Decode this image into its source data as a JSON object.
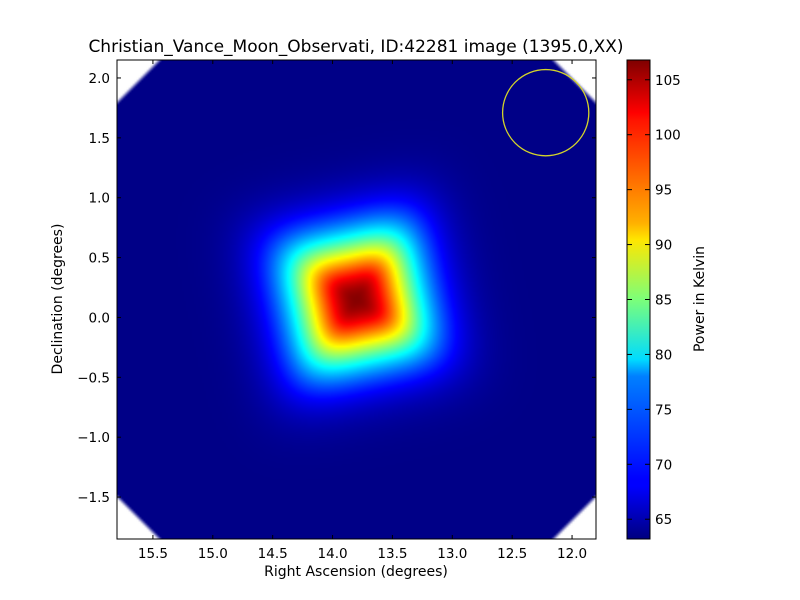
{
  "chart_data": {
    "type": "heatmap",
    "title": "Christian_Vance_Moon_Observati, ID:42281 image (1395.0,XX)",
    "xlabel": "Right Ascension (degrees)",
    "ylabel": "Declination (degrees)",
    "colorbar_label": "Power in Kelvin",
    "colormap": "jet",
    "xlim": [
      15.8,
      11.8
    ],
    "ylim": [
      -1.85,
      2.15
    ],
    "x_ticks": [
      15.5,
      15.0,
      14.5,
      14.0,
      13.5,
      13.0,
      12.5,
      12.0
    ],
    "x_tick_labels": [
      "15.5",
      "15.0",
      "14.5",
      "14.0",
      "13.5",
      "13.0",
      "12.5",
      "12.0"
    ],
    "y_ticks": [
      2.0,
      1.5,
      1.0,
      0.5,
      0.0,
      -0.5,
      -1.0,
      -1.5
    ],
    "y_tick_labels": [
      "2.0",
      "1.5",
      "1.0",
      "0.5",
      "0.0",
      "−0.5",
      "−1.0",
      "−1.5"
    ],
    "clim": [
      63.2,
      106.8
    ],
    "colorbar_ticks": [
      65,
      70,
      75,
      80,
      85,
      90,
      95,
      100,
      105
    ],
    "colorbar_tick_labels": [
      "65",
      "70",
      "75",
      "80",
      "85",
      "90",
      "95",
      "100",
      "105"
    ],
    "background_value": 63.5,
    "source": {
      "ra_center": 13.8,
      "dec_center": 0.15,
      "peak_value": 106.5,
      "plateau_half_width_deg": 0.55,
      "rotation_deg": 12
    },
    "beam_marker": {
      "ra": 12.22,
      "dec": 1.71,
      "radius_deg": 0.36,
      "color": "#d4d42a"
    },
    "grid": false,
    "legend": "none"
  }
}
